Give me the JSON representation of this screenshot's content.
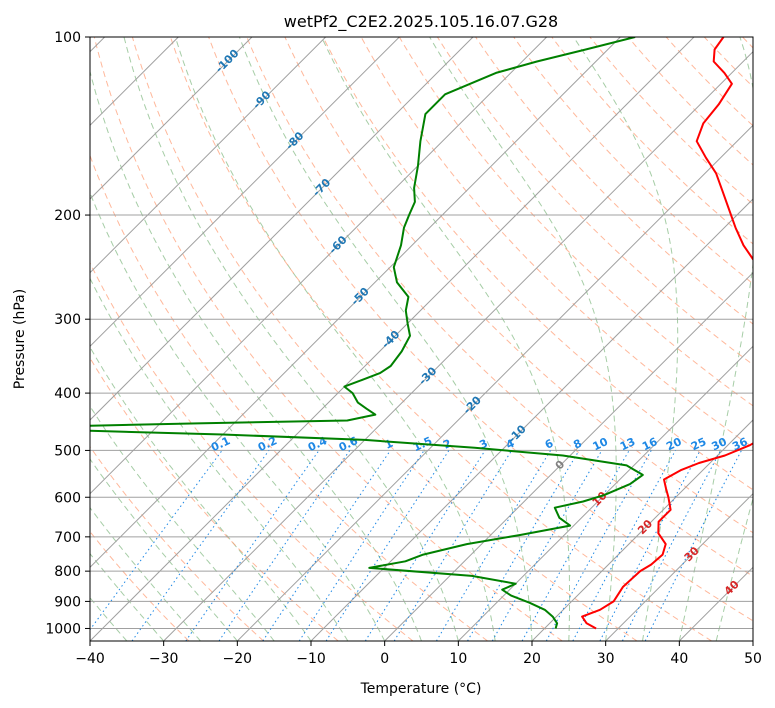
{
  "chart_data": {
    "type": "line",
    "subtype": "skew-t log-p sounding",
    "title": "wetPf2_C2E2.2025.105.16.07.G28",
    "xlabel": "Temperature (°C)",
    "ylabel": "Pressure (hPa)",
    "xlim": [
      -40,
      50
    ],
    "ylim": [
      1050,
      100
    ],
    "y_scale": "log",
    "grid": true,
    "x_ticks": [
      -40,
      -30,
      -20,
      -10,
      0,
      10,
      20,
      30,
      40,
      50
    ],
    "x_tick_labels": [
      "−40",
      "−30",
      "−20",
      "−10",
      "0",
      "10",
      "20",
      "30",
      "40",
      "50"
    ],
    "y_ticks": [
      100,
      200,
      300,
      400,
      500,
      600,
      700,
      800,
      900,
      1000
    ],
    "y_tick_labels": [
      "100",
      "200",
      "300",
      "400",
      "500",
      "600",
      "700",
      "800",
      "900",
      "1000"
    ],
    "colors": {
      "temperature": "#ff0000",
      "dewpoint": "#008000",
      "isotherm": "#a0a0a0",
      "dry_adiabat": "#ffa07a",
      "moist_adiabat": "#90c090",
      "mixing_ratio": "#1e88e5",
      "dry_adiabat_label": "#1f77b4",
      "moist_adiabat_label": "#d62728"
    },
    "series": [
      {
        "key": "temperature",
        "points": [
          [
            27.0,
            1000
          ],
          [
            25.0,
            980
          ],
          [
            23.5,
            955
          ],
          [
            25.0,
            930
          ],
          [
            25.7,
            900
          ],
          [
            25.0,
            850
          ],
          [
            25.2,
            800
          ],
          [
            25.8,
            780
          ],
          [
            26.0,
            750
          ],
          [
            25.0,
            720
          ],
          [
            22.5,
            690
          ],
          [
            21.0,
            660
          ],
          [
            21.0,
            630
          ],
          [
            19.0,
            600
          ],
          [
            17.5,
            580
          ],
          [
            16.0,
            560
          ],
          [
            17.0,
            540
          ],
          [
            18.5,
            525
          ],
          [
            21.0,
            510
          ],
          [
            23.0,
            490
          ],
          [
            24.0,
            470
          ],
          [
            24.5,
            450
          ],
          [
            23.5,
            420
          ],
          [
            22.0,
            400
          ],
          [
            20.0,
            380
          ],
          [
            19.5,
            370
          ],
          [
            18.5,
            350
          ],
          [
            17.0,
            330
          ],
          [
            14.0,
            310
          ],
          [
            10.0,
            290
          ],
          [
            5.0,
            265
          ],
          [
            0.0,
            245
          ],
          [
            -5.0,
            225
          ],
          [
            -8.5,
            210
          ],
          [
            -12.0,
            195
          ],
          [
            -15.0,
            183
          ],
          [
            -18.5,
            170
          ],
          [
            -22.0,
            160
          ],
          [
            -25.5,
            150
          ],
          [
            -27.0,
            140
          ],
          [
            -27.5,
            130
          ],
          [
            -28.5,
            120
          ],
          [
            -31.0,
            115
          ],
          [
            -34.0,
            110
          ],
          [
            -35.5,
            105
          ],
          [
            -36.0,
            100
          ]
        ]
      },
      {
        "key": "dewpoint",
        "points": [
          [
            21.5,
            1000
          ],
          [
            21.0,
            980
          ],
          [
            19.5,
            955
          ],
          [
            17.5,
            930
          ],
          [
            14.5,
            905
          ],
          [
            11.0,
            880
          ],
          [
            9.0,
            860
          ],
          [
            10.0,
            840
          ],
          [
            3.0,
            815
          ],
          [
            -12.0,
            790
          ],
          [
            -8.0,
            770
          ],
          [
            -6.5,
            750
          ],
          [
            -2.0,
            720
          ],
          [
            4.0,
            695
          ],
          [
            9.5,
            670
          ],
          [
            7.0,
            650
          ],
          [
            5.0,
            625
          ],
          [
            8.0,
            610
          ],
          [
            10.0,
            595
          ],
          [
            12.0,
            570
          ],
          [
            12.5,
            550
          ],
          [
            9.0,
            530
          ],
          [
            -1.0,
            510
          ],
          [
            -14.0,
            495
          ],
          [
            -30.0,
            480
          ],
          [
            -50.0,
            470
          ],
          [
            -72.0,
            462
          ],
          [
            -85.0,
            460
          ],
          [
            -72.0,
            455
          ],
          [
            -55.0,
            450
          ],
          [
            -35.0,
            445
          ],
          [
            -32.0,
            435
          ],
          [
            -34.0,
            425
          ],
          [
            -36.0,
            415
          ],
          [
            -38.0,
            400
          ],
          [
            -40.0,
            390
          ],
          [
            -38.5,
            380
          ],
          [
            -37.0,
            370
          ],
          [
            -36.5,
            360
          ],
          [
            -37.0,
            340
          ],
          [
            -38.0,
            320
          ],
          [
            -40.0,
            305
          ],
          [
            -42.0,
            290
          ],
          [
            -43.5,
            275
          ],
          [
            -47.0,
            260
          ],
          [
            -49.5,
            245
          ],
          [
            -51.5,
            225
          ],
          [
            -53.5,
            210
          ],
          [
            -54.5,
            200
          ],
          [
            -55.5,
            190
          ],
          [
            -57.5,
            180
          ],
          [
            -60.0,
            165
          ],
          [
            -63.0,
            150
          ],
          [
            -66.0,
            135
          ],
          [
            -66.0,
            125
          ],
          [
            -62.0,
            115
          ],
          [
            -58.0,
            110
          ],
          [
            -53.0,
            105
          ],
          [
            -48.0,
            100
          ]
        ]
      }
    ],
    "dry_adiabat_labels": [
      "-100",
      "-90",
      "-80",
      "-70",
      "-60",
      "-50",
      "-40",
      "-30",
      "-20",
      "-10",
      "0",
      "10",
      "20",
      "30",
      "40"
    ],
    "moist_adiabat_labels": [
      "10",
      "20",
      "30",
      "40"
    ],
    "mixing_ratio_labels": [
      "0.1",
      "0.2",
      "0.4",
      "0.6",
      "1",
      "1.5",
      "2",
      "3",
      "4",
      "6",
      "8",
      "10",
      "13",
      "16",
      "20",
      "25",
      "30",
      "36"
    ]
  }
}
